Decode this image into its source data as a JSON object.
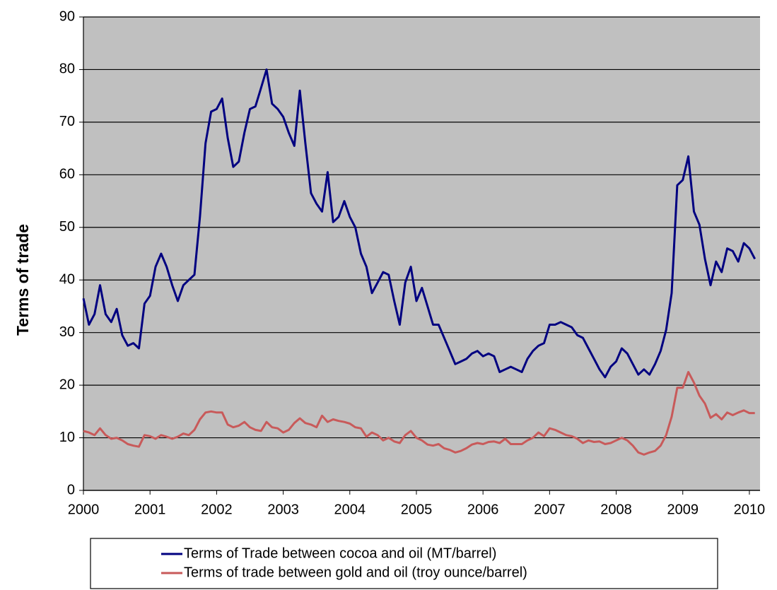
{
  "chart_data": {
    "type": "line",
    "y_label": "Terms of trade",
    "x": [
      2000,
      2000.083,
      2000.167,
      2000.25,
      2000.333,
      2000.417,
      2000.5,
      2000.583,
      2000.667,
      2000.75,
      2000.833,
      2000.917,
      2001,
      2001.083,
      2001.167,
      2001.25,
      2001.333,
      2001.417,
      2001.5,
      2001.583,
      2001.667,
      2001.75,
      2001.833,
      2001.917,
      2002,
      2002.083,
      2002.167,
      2002.25,
      2002.333,
      2002.417,
      2002.5,
      2002.583,
      2002.667,
      2002.75,
      2002.833,
      2002.917,
      2003,
      2003.083,
      2003.167,
      2003.25,
      2003.333,
      2003.417,
      2003.5,
      2003.583,
      2003.667,
      2003.75,
      2003.833,
      2003.917,
      2004,
      2004.083,
      2004.167,
      2004.25,
      2004.333,
      2004.417,
      2004.5,
      2004.583,
      2004.667,
      2004.75,
      2004.833,
      2004.917,
      2005,
      2005.083,
      2005.167,
      2005.25,
      2005.333,
      2005.417,
      2005.5,
      2005.583,
      2005.667,
      2005.75,
      2005.833,
      2005.917,
      2006,
      2006.083,
      2006.167,
      2006.25,
      2006.333,
      2006.417,
      2006.5,
      2006.583,
      2006.667,
      2006.75,
      2006.833,
      2006.917,
      2007,
      2007.083,
      2007.167,
      2007.25,
      2007.333,
      2007.417,
      2007.5,
      2007.583,
      2007.667,
      2007.75,
      2007.833,
      2007.917,
      2008,
      2008.083,
      2008.167,
      2008.25,
      2008.333,
      2008.417,
      2008.5,
      2008.583,
      2008.667,
      2008.75,
      2008.833,
      2008.917,
      2009,
      2009.083,
      2009.167,
      2009.25,
      2009.333,
      2009.417,
      2009.5,
      2009.583,
      2009.667,
      2009.75,
      2009.833,
      2009.917,
      2010,
      2010.083
    ],
    "series": [
      {
        "name": "Terms of Trade between cocoa and oil  (MT/barrel)",
        "color": "#000080",
        "values": [
          36.5,
          31.5,
          33.5,
          39,
          33.5,
          32,
          34.5,
          29.5,
          27.5,
          28,
          27,
          35.5,
          37,
          42.5,
          45,
          42.5,
          39,
          36,
          39,
          40,
          41,
          52,
          66,
          72,
          72.5,
          74.5,
          67,
          61.5,
          62.5,
          68,
          72.5,
          73,
          76.5,
          80,
          73.5,
          72.5,
          71,
          68,
          65.5,
          76,
          66,
          56.5,
          54.5,
          53,
          60.5,
          51,
          52,
          55,
          52,
          50,
          45,
          42.5,
          37.5,
          39.5,
          41.5,
          41,
          36,
          31.5,
          39.5,
          42.5,
          36,
          38.5,
          35,
          31.5,
          31.5,
          29,
          26.5,
          24,
          24.5,
          25,
          26,
          26.5,
          25.5,
          26,
          25.5,
          22.5,
          23,
          23.5,
          23,
          22.5,
          25,
          26.5,
          27.5,
          28,
          31.5,
          31.5,
          32,
          31.5,
          31,
          29.5,
          29,
          27,
          25,
          23,
          21.5,
          23.5,
          24.5,
          27,
          26,
          24,
          22,
          23,
          22,
          24,
          26.5,
          30.5,
          37.5,
          58,
          59,
          63.5,
          53,
          50.5,
          44,
          39,
          43.5,
          41.5,
          46,
          45.5,
          43.5,
          47,
          46,
          44
        ]
      },
      {
        "name": "Terms of trade between gold and oil (troy ounce/barrel)",
        "color": "#c85a5a",
        "values": [
          11.3,
          11,
          10.5,
          11.8,
          10.5,
          9.8,
          10,
          9.5,
          8.8,
          8.5,
          8.3,
          10.5,
          10.3,
          9.8,
          10.5,
          10.2,
          9.8,
          10.2,
          10.8,
          10.5,
          11.5,
          13.5,
          14.8,
          15,
          14.8,
          14.8,
          12.5,
          12,
          12.3,
          13,
          12,
          11.5,
          11.3,
          13,
          12,
          11.8,
          11,
          11.5,
          12.8,
          13.7,
          12.8,
          12.5,
          12,
          14.2,
          13,
          13.5,
          13.2,
          13,
          12.7,
          12,
          11.8,
          10.2,
          11,
          10.5,
          9.5,
          10,
          9.3,
          9,
          10.5,
          11.3,
          10,
          9.5,
          8.7,
          8.5,
          8.8,
          8,
          7.7,
          7.2,
          7.5,
          8,
          8.7,
          9,
          8.8,
          9.2,
          9.3,
          9,
          9.8,
          8.8,
          8.8,
          8.8,
          9.5,
          10,
          11,
          10.3,
          11.8,
          11.5,
          11,
          10.5,
          10.3,
          9.8,
          9,
          9.5,
          9.2,
          9.3,
          8.8,
          9,
          9.5,
          10,
          9.5,
          8.5,
          7.2,
          6.8,
          7.2,
          7.5,
          8.5,
          10.5,
          14,
          19.5,
          19.5,
          22.5,
          20.5,
          18,
          16.5,
          13.8,
          14.5,
          13.5,
          14.8,
          14.3,
          14.8,
          15.2,
          14.7,
          14.7
        ]
      }
    ],
    "xlim": [
      2000,
      2010.16
    ],
    "xticks": [
      2000,
      2001,
      2002,
      2003,
      2004,
      2005,
      2006,
      2007,
      2008,
      2009,
      2010
    ],
    "ylim": [
      0,
      90
    ],
    "yticks": [
      0,
      10,
      20,
      30,
      40,
      50,
      60,
      70,
      80,
      90
    ],
    "grid": true,
    "plot_background": "#c0c0c0",
    "legend": "bottom"
  }
}
